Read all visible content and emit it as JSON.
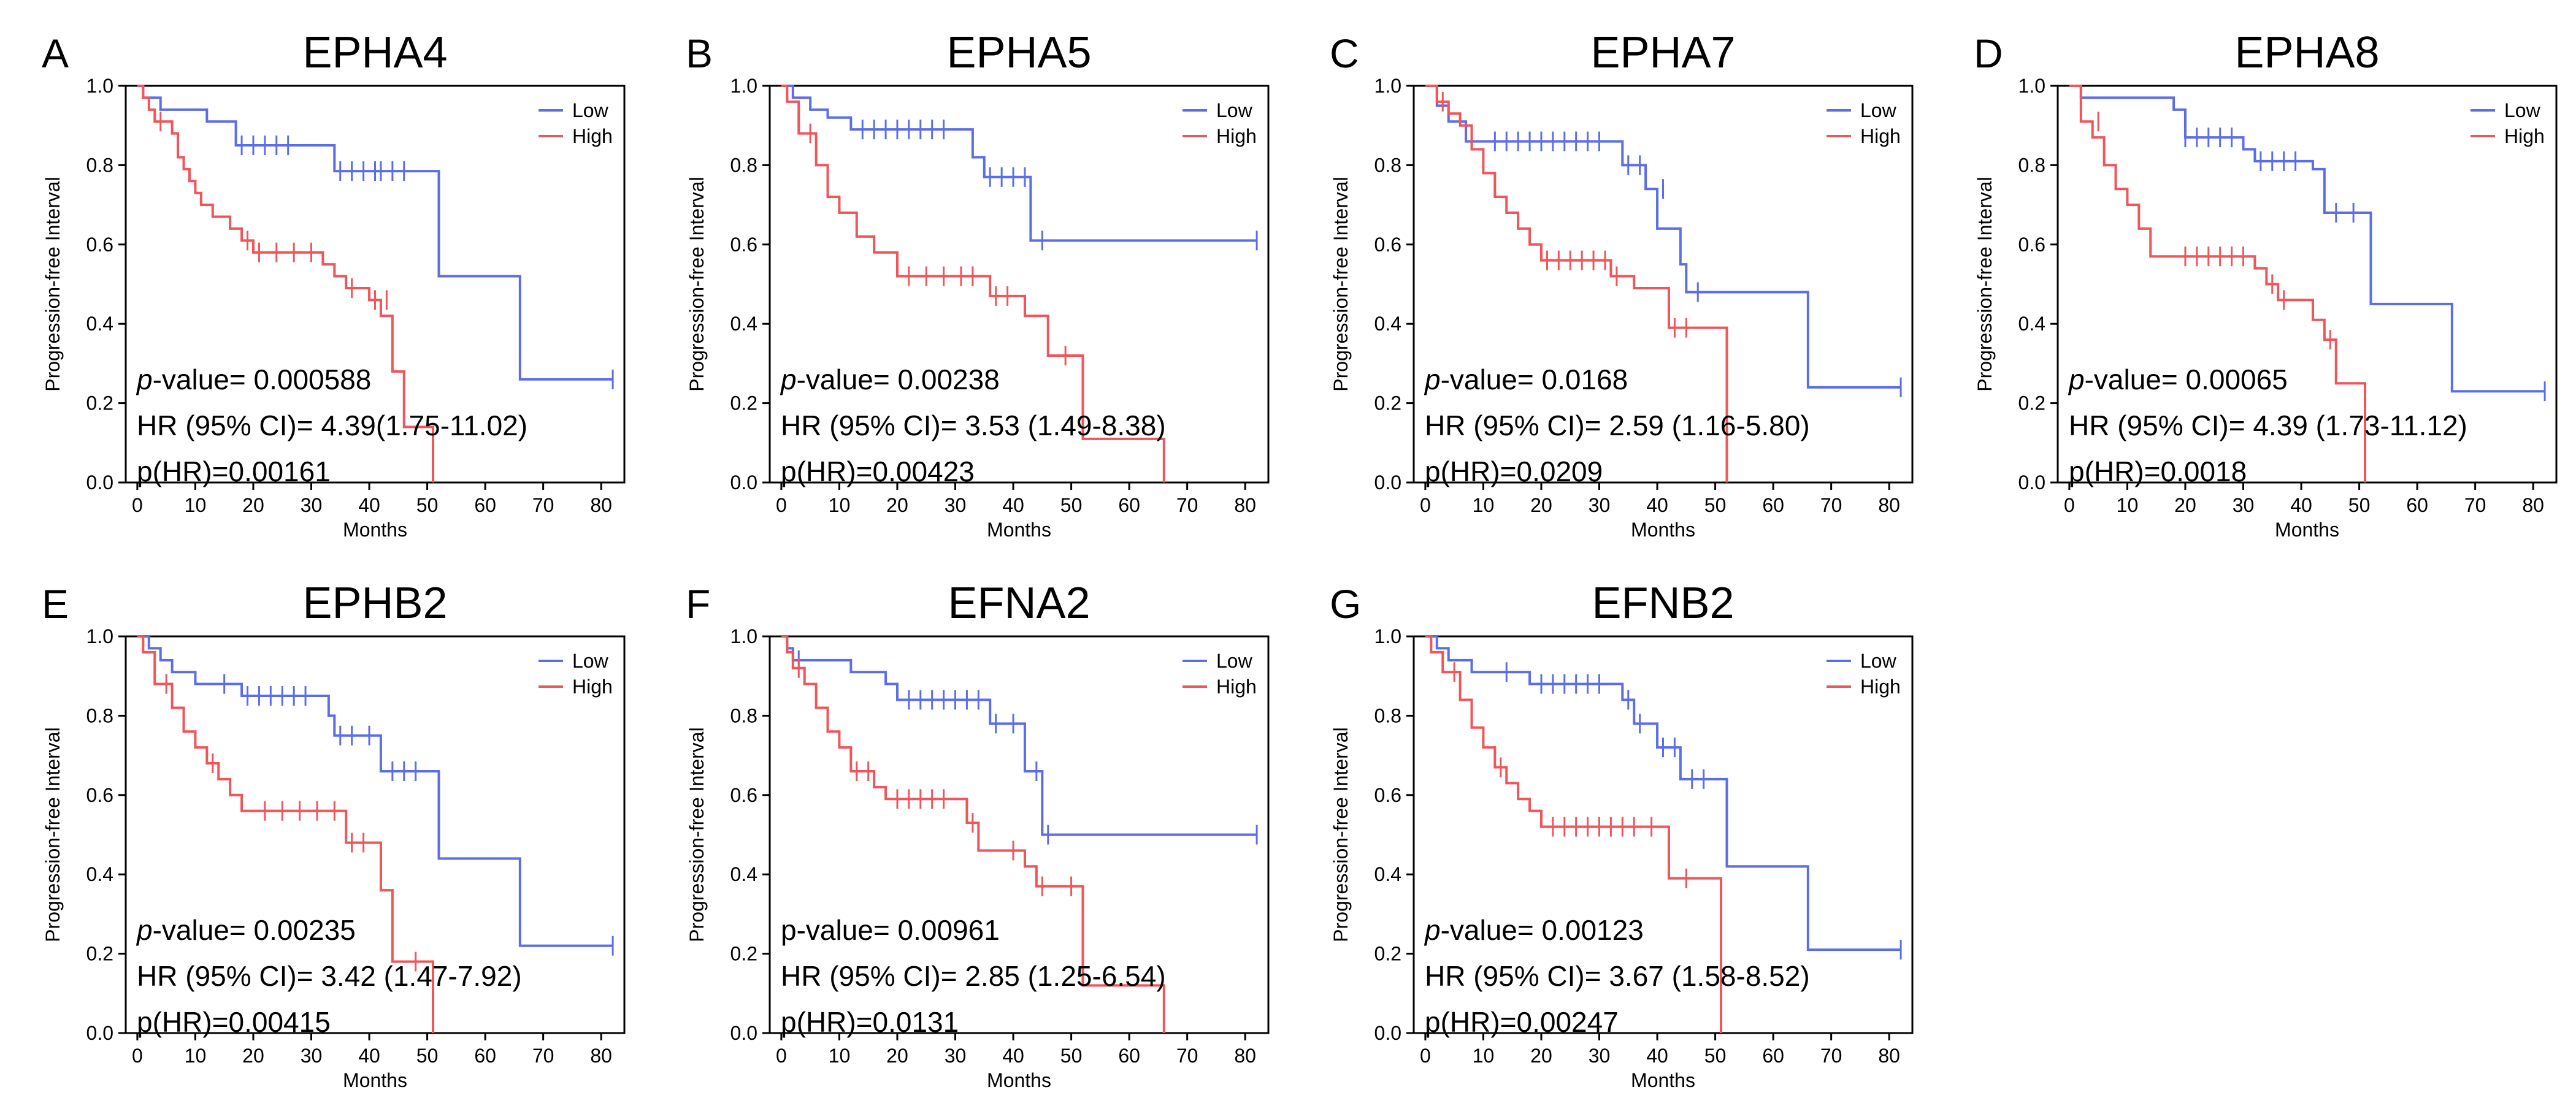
{
  "figure": {
    "axis": {
      "xlabel": "Months",
      "ylabel": "Progression-free Interval",
      "xlim": [
        -2,
        84
      ],
      "ylim": [
        0,
        1.0
      ],
      "xticks": [
        0,
        10,
        20,
        30,
        40,
        50,
        60,
        70,
        80
      ],
      "yticks": [
        0.0,
        0.2,
        0.4,
        0.6,
        0.8,
        1.0
      ],
      "xtick_labels": [
        "0",
        "10",
        "20",
        "30",
        "40",
        "50",
        "60",
        "70",
        "80"
      ],
      "ytick_labels": [
        "0.0",
        "0.2",
        "0.4",
        "0.6",
        "0.8",
        "1.0"
      ]
    },
    "legend": {
      "placement": "top-right",
      "entries": [
        "Low",
        "High"
      ]
    },
    "colors": {
      "Low": "#5b6ee8",
      "High": "#f0555a"
    },
    "stats_labels": {
      "pvalue_italic": "p",
      "pvalue_rest": "-value= ",
      "hr_prefix": "HR (95% CI)= ",
      "phr_prefix": "p(HR)="
    }
  },
  "chart_data": [
    {
      "type": "line",
      "panel": "A",
      "title": "EPHA4",
      "xlabel": "Months",
      "ylabel": "Progression-free Interval",
      "ylim": [
        0,
        1.0
      ],
      "legend": [
        "Low",
        "High"
      ],
      "stats": {
        "pvalue": "0.000588",
        "hr": "4.39(1.75-11.02)",
        "phr": "0.00161",
        "pvalue_italic": true
      },
      "series": [
        {
          "name": "Low",
          "x": [
            0,
            1,
            4,
            8,
            12,
            17,
            34,
            52,
            66,
            82
          ],
          "y": [
            1.0,
            0.97,
            0.94,
            0.94,
            0.91,
            0.85,
            0.785,
            0.52,
            0.26,
            0.26
          ],
          "censored_x": [
            18,
            20,
            22,
            24,
            26,
            35,
            37,
            39,
            41,
            42,
            44,
            46,
            82
          ],
          "censored_y": [
            0.85,
            0.85,
            0.85,
            0.85,
            0.85,
            0.785,
            0.785,
            0.785,
            0.785,
            0.785,
            0.785,
            0.785,
            0.26
          ]
        },
        {
          "name": "High",
          "x": [
            0,
            1,
            2,
            3,
            6,
            7,
            8,
            9,
            10,
            11,
            13,
            16,
            18,
            20,
            32,
            34,
            36,
            40,
            42,
            44,
            46,
            51
          ],
          "y": [
            1.0,
            0.97,
            0.94,
            0.91,
            0.88,
            0.82,
            0.79,
            0.76,
            0.73,
            0.7,
            0.67,
            0.64,
            0.61,
            0.58,
            0.55,
            0.52,
            0.49,
            0.46,
            0.42,
            0.28,
            0.14,
            0.0
          ],
          "censored_x": [
            4,
            19,
            21,
            24,
            27,
            30,
            37,
            41,
            43
          ],
          "censored_y": [
            0.91,
            0.61,
            0.58,
            0.58,
            0.58,
            0.58,
            0.49,
            0.46,
            0.46
          ]
        }
      ]
    },
    {
      "type": "line",
      "panel": "B",
      "title": "EPHA5",
      "xlabel": "Months",
      "ylabel": "Progression-free Interval",
      "ylim": [
        0,
        1.0
      ],
      "legend": [
        "Low",
        "High"
      ],
      "stats": {
        "pvalue": "0.00238",
        "hr": "3.53 (1.49-8.38)",
        "phr": "0.00423",
        "pvalue_italic": true
      },
      "series": [
        {
          "name": "Low",
          "x": [
            0,
            2,
            5,
            8,
            12,
            33,
            35,
            43,
            82
          ],
          "y": [
            1.0,
            0.97,
            0.94,
            0.92,
            0.89,
            0.82,
            0.77,
            0.61,
            0.61
          ],
          "censored_x": [
            14,
            16,
            18,
            20,
            22,
            24,
            26,
            28,
            36,
            38,
            40,
            42,
            45,
            82
          ],
          "censored_y": [
            0.89,
            0.89,
            0.89,
            0.89,
            0.89,
            0.89,
            0.89,
            0.89,
            0.77,
            0.77,
            0.77,
            0.77,
            0.61,
            0.61
          ]
        },
        {
          "name": "High",
          "x": [
            0,
            1,
            3,
            6,
            8,
            10,
            13,
            16,
            20,
            36,
            42,
            46,
            52,
            66
          ],
          "y": [
            1.0,
            0.96,
            0.88,
            0.8,
            0.72,
            0.68,
            0.62,
            0.58,
            0.52,
            0.47,
            0.42,
            0.32,
            0.11,
            0.0
          ],
          "censored_x": [
            5,
            22,
            25,
            28,
            31,
            33,
            37,
            39,
            49
          ],
          "censored_y": [
            0.88,
            0.52,
            0.52,
            0.52,
            0.52,
            0.52,
            0.47,
            0.47,
            0.32
          ]
        }
      ]
    },
    {
      "type": "line",
      "panel": "C",
      "title": "EPHA7",
      "xlabel": "Months",
      "ylabel": "Progression-free Interval",
      "ylim": [
        0,
        1.0
      ],
      "legend": [
        "Low",
        "High"
      ],
      "stats": {
        "pvalue": "0.0168",
        "hr": "2.59 (1.16-5.80)",
        "phr": "0.0209",
        "pvalue_italic": true
      },
      "series": [
        {
          "name": "Low",
          "x": [
            0,
            2,
            4,
            7,
            34,
            38,
            40,
            44,
            45,
            66,
            82
          ],
          "y": [
            1.0,
            0.95,
            0.91,
            0.86,
            0.8,
            0.74,
            0.64,
            0.55,
            0.48,
            0.24,
            0.24
          ],
          "censored_x": [
            12,
            14,
            16,
            18,
            20,
            22,
            24,
            26,
            28,
            30,
            35,
            37,
            41,
            47,
            82
          ],
          "censored_y": [
            0.86,
            0.86,
            0.86,
            0.86,
            0.86,
            0.86,
            0.86,
            0.86,
            0.86,
            0.86,
            0.8,
            0.8,
            0.74,
            0.48,
            0.24
          ]
        },
        {
          "name": "High",
          "x": [
            0,
            2,
            4,
            6,
            8,
            10,
            12,
            14,
            16,
            18,
            20,
            32,
            36,
            42,
            52
          ],
          "y": [
            1.0,
            0.96,
            0.93,
            0.9,
            0.84,
            0.78,
            0.72,
            0.68,
            0.64,
            0.6,
            0.56,
            0.52,
            0.49,
            0.39,
            0.0
          ],
          "censored_x": [
            3,
            21,
            23,
            25,
            27,
            29,
            31,
            33,
            43,
            45
          ],
          "censored_y": [
            0.96,
            0.56,
            0.56,
            0.56,
            0.56,
            0.56,
            0.56,
            0.52,
            0.39,
            0.39
          ]
        }
      ]
    },
    {
      "type": "line",
      "panel": "D",
      "title": "EPHA8",
      "xlabel": "Months",
      "ylabel": "Progression-free Interval",
      "ylim": [
        0,
        1.0
      ],
      "legend": [
        "Low",
        "High"
      ],
      "stats": {
        "pvalue": "0.00065",
        "hr": "4.39 (1.73-11.12)",
        "phr": "0.0018",
        "pvalue_italic": true
      },
      "series": [
        {
          "name": "Low",
          "x": [
            0,
            2,
            4,
            18,
            20,
            30,
            32,
            42,
            44,
            52,
            66,
            82
          ],
          "y": [
            1.0,
            0.97,
            0.97,
            0.94,
            0.87,
            0.84,
            0.81,
            0.79,
            0.68,
            0.45,
            0.23,
            0.23
          ],
          "censored_x": [
            20,
            22,
            24,
            26,
            28,
            33,
            35,
            37,
            39,
            46,
            49,
            82
          ],
          "censored_y": [
            0.87,
            0.87,
            0.87,
            0.87,
            0.87,
            0.81,
            0.81,
            0.81,
            0.81,
            0.68,
            0.68,
            0.23
          ]
        },
        {
          "name": "High",
          "x": [
            0,
            2,
            4,
            6,
            8,
            10,
            12,
            14,
            32,
            34,
            36,
            42,
            44,
            46,
            50,
            51
          ],
          "y": [
            1.0,
            0.91,
            0.87,
            0.8,
            0.74,
            0.7,
            0.64,
            0.57,
            0.54,
            0.5,
            0.46,
            0.41,
            0.36,
            0.25,
            0.25,
            0.0
          ],
          "censored_x": [
            5,
            20,
            22,
            24,
            26,
            28,
            30,
            35,
            37,
            45
          ],
          "censored_y": [
            0.91,
            0.57,
            0.57,
            0.57,
            0.57,
            0.57,
            0.57,
            0.5,
            0.46,
            0.36
          ]
        }
      ]
    },
    {
      "type": "line",
      "panel": "E",
      "title": "EPHB2",
      "xlabel": "Months",
      "ylabel": "Progression-free Interval",
      "ylim": [
        0,
        1.0
      ],
      "legend": [
        "Low",
        "High"
      ],
      "stats": {
        "pvalue": "0.00235",
        "hr": "3.42 (1.47-7.92)",
        "phr": "0.00415",
        "pvalue_italic": true
      },
      "series": [
        {
          "name": "Low",
          "x": [
            0,
            2,
            4,
            6,
            10,
            18,
            33,
            34,
            42,
            52,
            66,
            82
          ],
          "y": [
            1.0,
            0.97,
            0.94,
            0.91,
            0.88,
            0.85,
            0.8,
            0.75,
            0.66,
            0.44,
            0.22,
            0.22
          ],
          "censored_x": [
            15,
            19,
            21,
            23,
            25,
            27,
            29,
            35,
            37,
            40,
            44,
            46,
            48,
            82
          ],
          "censored_y": [
            0.88,
            0.85,
            0.85,
            0.85,
            0.85,
            0.85,
            0.85,
            0.75,
            0.75,
            0.75,
            0.66,
            0.66,
            0.66,
            0.22
          ]
        },
        {
          "name": "High",
          "x": [
            0,
            1,
            3,
            6,
            8,
            10,
            12,
            14,
            16,
            18,
            20,
            36,
            42,
            44,
            46,
            51
          ],
          "y": [
            1.0,
            0.96,
            0.88,
            0.82,
            0.76,
            0.72,
            0.68,
            0.64,
            0.6,
            0.56,
            0.56,
            0.48,
            0.36,
            0.18,
            0.18,
            0.0
          ],
          "censored_x": [
            5,
            13,
            22,
            25,
            28,
            31,
            34,
            37,
            39,
            48
          ],
          "censored_y": [
            0.88,
            0.68,
            0.56,
            0.56,
            0.56,
            0.56,
            0.56,
            0.48,
            0.48,
            0.18
          ]
        }
      ]
    },
    {
      "type": "line",
      "panel": "F",
      "title": "EFNA2",
      "xlabel": "Months",
      "ylabel": "Progression-free Interval",
      "ylim": [
        0,
        1.0
      ],
      "legend": [
        "Low",
        "High"
      ],
      "stats": {
        "pvalue": "0.00961",
        "hr": "2.85 (1.25-6.54)",
        "phr": "0.0131",
        "pvalue_italic": false
      },
      "series": [
        {
          "name": "Low",
          "x": [
            0,
            1,
            2,
            4,
            12,
            18,
            20,
            36,
            38,
            42,
            45,
            82
          ],
          "y": [
            1.0,
            0.97,
            0.94,
            0.94,
            0.91,
            0.88,
            0.84,
            0.78,
            0.78,
            0.66,
            0.5,
            0.5
          ],
          "censored_x": [
            3,
            22,
            24,
            26,
            28,
            30,
            32,
            34,
            37,
            40,
            44,
            46,
            82
          ],
          "censored_y": [
            0.94,
            0.84,
            0.84,
            0.84,
            0.84,
            0.84,
            0.84,
            0.84,
            0.78,
            0.78,
            0.66,
            0.5,
            0.5
          ]
        },
        {
          "name": "High",
          "x": [
            0,
            1,
            2,
            4,
            6,
            8,
            10,
            12,
            16,
            18,
            32,
            34,
            42,
            44,
            46,
            52,
            66
          ],
          "y": [
            1.0,
            0.96,
            0.92,
            0.88,
            0.82,
            0.76,
            0.72,
            0.66,
            0.62,
            0.59,
            0.53,
            0.46,
            0.42,
            0.37,
            0.37,
            0.12,
            0.0
          ],
          "censored_x": [
            3,
            13,
            15,
            20,
            22,
            24,
            26,
            28,
            33,
            40,
            45,
            50
          ],
          "censored_y": [
            0.92,
            0.66,
            0.66,
            0.59,
            0.59,
            0.59,
            0.59,
            0.59,
            0.53,
            0.46,
            0.37,
            0.37
          ]
        }
      ]
    },
    {
      "type": "line",
      "panel": "G",
      "title": "EFNB2",
      "xlabel": "Months",
      "ylabel": "Progression-free Interval",
      "ylim": [
        0,
        1.0
      ],
      "legend": [
        "Low",
        "High"
      ],
      "stats": {
        "pvalue": "0.00123",
        "hr": "3.67 (1.58-8.52)",
        "phr": "0.00247",
        "pvalue_italic": true
      },
      "series": [
        {
          "name": "Low",
          "x": [
            0,
            2,
            4,
            8,
            18,
            34,
            36,
            40,
            44,
            52,
            66,
            82
          ],
          "y": [
            1.0,
            0.97,
            0.94,
            0.91,
            0.88,
            0.84,
            0.78,
            0.72,
            0.64,
            0.42,
            0.21,
            0.21
          ],
          "censored_x": [
            14,
            20,
            22,
            24,
            26,
            28,
            30,
            35,
            37,
            41,
            43,
            46,
            48,
            82
          ],
          "censored_y": [
            0.91,
            0.88,
            0.88,
            0.88,
            0.88,
            0.88,
            0.88,
            0.84,
            0.78,
            0.72,
            0.72,
            0.64,
            0.64,
            0.21
          ]
        },
        {
          "name": "High",
          "x": [
            0,
            1,
            3,
            6,
            8,
            10,
            12,
            14,
            16,
            18,
            20,
            42,
            44,
            51
          ],
          "y": [
            1.0,
            0.96,
            0.91,
            0.84,
            0.77,
            0.72,
            0.67,
            0.63,
            0.59,
            0.56,
            0.52,
            0.39,
            0.39,
            0.0
          ],
          "censored_x": [
            5,
            13,
            22,
            24,
            26,
            28,
            30,
            32,
            34,
            36,
            39,
            45
          ],
          "censored_y": [
            0.91,
            0.67,
            0.52,
            0.52,
            0.52,
            0.52,
            0.52,
            0.52,
            0.52,
            0.52,
            0.52,
            0.39
          ]
        }
      ]
    }
  ]
}
